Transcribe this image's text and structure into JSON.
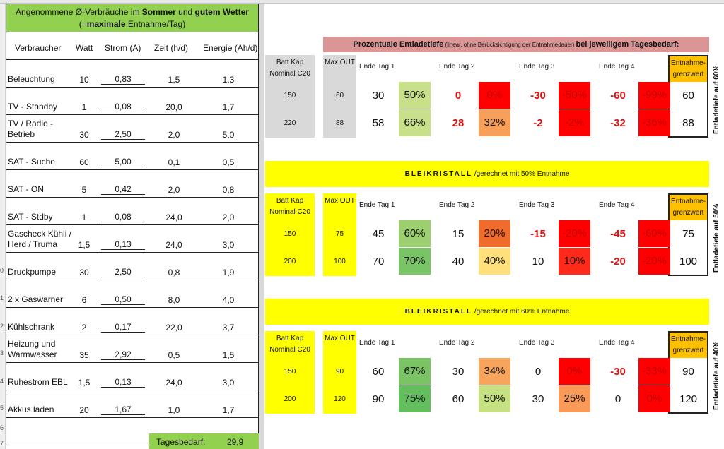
{
  "left": {
    "title_line1_prefix": "Angenommene Ø-Verbräuche im ",
    "title_line1_bold1": "Sommer",
    "title_line1_mid": " und ",
    "title_line1_bold2": "gutem Wetter",
    "title_line2_prefix": "(=",
    "title_line2_bold": "maximale",
    "title_line2_suffix": " Entnahme/Tag)",
    "headers": {
      "name": "Verbraucher",
      "watt": "Watt",
      "amp": "Strom (A)",
      "time": "Zeit (h/d)",
      "energy": "Energie (Ah/d)"
    },
    "rows": [
      {
        "name": "Beleuchtung",
        "watt": "10",
        "amp": "0,83",
        "time": "1,5",
        "energy": "1,3"
      },
      {
        "name": "TV - Standby",
        "watt": "1",
        "amp": "0,08",
        "time": "20,0",
        "energy": "1,7"
      },
      {
        "name": "TV / Radio - Betrieb",
        "watt": "30",
        "amp": "2,50",
        "time": "2,0",
        "energy": "5,0"
      },
      {
        "name": "SAT - Suche",
        "watt": "60",
        "amp": "5,00",
        "time": "0,1",
        "energy": "0,5"
      },
      {
        "name": "SAT - ON",
        "watt": "5",
        "amp": "0,42",
        "time": "2,0",
        "energy": "0,8"
      },
      {
        "name": "SAT - Stdby",
        "watt": "1",
        "amp": "0,08",
        "time": "24,0",
        "energy": "2,0"
      },
      {
        "name": "Gascheck Kühli / Herd / Truma",
        "watt": "1,5",
        "amp": "0,13",
        "time": "24,0",
        "energy": "3,0"
      },
      {
        "name": "Druckpumpe",
        "watt": "30",
        "amp": "2,50",
        "time": "0,8",
        "energy": "1,9"
      },
      {
        "name": "2 x Gaswarner",
        "watt": "6",
        "amp": "0,50",
        "time": "8,0",
        "energy": "4,0"
      },
      {
        "name": "Kühlschrank",
        "watt": "2",
        "amp": "0,17",
        "time": "22,0",
        "energy": "3,7"
      },
      {
        "name": "Heizung und Warmwasser",
        "watt": "35",
        "amp": "2,92",
        "time": "0,5",
        "energy": "1,5"
      },
      {
        "name": "Ruhestrom EBL",
        "watt": "1,5",
        "amp": "0,13",
        "time": "24,0",
        "energy": "3,0"
      },
      {
        "name": "Akkus laden",
        "watt": "20",
        "amp": "1,67",
        "time": "1,0",
        "energy": "1,7"
      }
    ],
    "total_label": "Tagesbedarf:",
    "total_value": "29,9"
  },
  "row_numbers": [
    "0",
    "1",
    "2",
    "3",
    "4",
    "5",
    "6",
    "7"
  ],
  "pink_header": {
    "bold1": "Prozentuale Entladetiefe",
    "small": " (linear, ohne Berücksichtigung der Entnahmedauer) ",
    "bold2": "bei jeweiligem Tagesbedarf:"
  },
  "block_headers": {
    "cap": "Batt Kap Nominal C20",
    "max": "Max OUT",
    "day1": "Ende Tag 1",
    "day2": "Ende Tag 2",
    "day3": "Ende Tag 3",
    "day4": "Ende Tag 4",
    "limit": "Entnahme-grenzwert"
  },
  "blocks": [
    {
      "band_spaced": "",
      "band_suffix": "",
      "side_label": "Entladetiefe auf 60%",
      "rows": [
        {
          "cap": "150",
          "max": "60",
          "d1": "30",
          "p1": "50%",
          "d2": "0",
          "p2": "0%",
          "d3": "-30",
          "p3": "-50%",
          "d4": "-60",
          "p4": "-99%",
          "limit": "60"
        },
        {
          "cap": "220",
          "max": "88",
          "d1": "58",
          "p1": "66%",
          "d2": "28",
          "p2": "32%",
          "d3": "-2",
          "p3": "-2%",
          "d4": "-32",
          "p4": "-36%",
          "limit": "88"
        }
      ]
    },
    {
      "band_spaced": "BLEIKRISTALL",
      "band_suffix": " /gerechnet mit 50% Entnahme",
      "side_label": "Entladetiefe auf 50%",
      "rows": [
        {
          "cap": "150",
          "max": "75",
          "d1": "45",
          "p1": "60%",
          "d2": "15",
          "p2": "20%",
          "d3": "-15",
          "p3": "-20%",
          "d4": "-45",
          "p4": "-60%",
          "limit": "75"
        },
        {
          "cap": "200",
          "max": "100",
          "d1": "70",
          "p1": "70%",
          "d2": "40",
          "p2": "40%",
          "d3": "10",
          "p3": "10%",
          "d4": "-20",
          "p4": "-20%",
          "limit": "100"
        }
      ]
    },
    {
      "band_spaced": "BLEIKRISTALL",
      "band_suffix": " /gerechnet mit 60% Entnahme",
      "side_label": "Entladetiefe auf 40%",
      "rows": [
        {
          "cap": "150",
          "max": "90",
          "d1": "60",
          "p1": "67%",
          "d2": "30",
          "p2": "34%",
          "d3": "0",
          "p3": "0%",
          "d4": "-30",
          "p4": "-33%",
          "limit": "90"
        },
        {
          "cap": "200",
          "max": "120",
          "d1": "90",
          "p1": "75%",
          "d2": "60",
          "p2": "50%",
          "d3": "30",
          "p3": "25%",
          "d4": "0",
          "p4": "0%",
          "limit": "120"
        }
      ]
    }
  ],
  "colors": {
    "green_header": "#92d050",
    "pink_header": "#d99694",
    "yellow_band": "#ffff00",
    "limit_header": "#ffc000",
    "cells": [
      [
        "#c9e08a",
        "#ff0000",
        "#ff0000",
        "#ff0000",
        "#c9e08a",
        "#f8a05a",
        "#ff0000",
        "#ff0000"
      ],
      [
        "#9ccf6f",
        "#f06c2c",
        "#ff0000",
        "#ff0000",
        "#79c467",
        "#ffe07a",
        "#ff2a1a",
        "#ff0000"
      ],
      [
        "#7ac466",
        "#f7a45c",
        "#ff0000",
        "#ff0000",
        "#63be5e",
        "#c6e181",
        "#f99a58",
        "#ff0000"
      ]
    ]
  }
}
